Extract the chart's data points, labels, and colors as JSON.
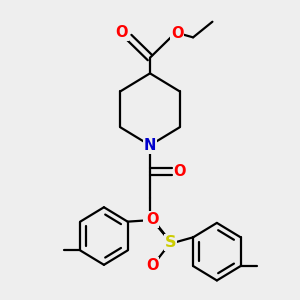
{
  "bg_color": "#eeeeee",
  "atom_colors": {
    "C": "#000000",
    "N": "#0000cc",
    "O": "#ff0000",
    "S": "#cccc00"
  },
  "line_color": "#000000",
  "line_width": 1.6,
  "font_size": 10.5
}
